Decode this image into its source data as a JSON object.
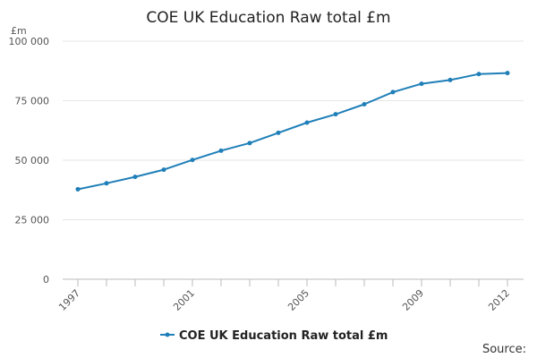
{
  "chart_data": {
    "type": "line",
    "title": "COE UK Education Raw total £m",
    "unit_label": "£m",
    "xlabel": "",
    "ylabel": "",
    "ylim": [
      0,
      100000
    ],
    "yticks": [
      0,
      25000,
      50000,
      75000,
      100000
    ],
    "ytick_labels": [
      "0",
      "25 000",
      "50 000",
      "75 000",
      "100 000"
    ],
    "xlim": [
      1997,
      2012
    ],
    "xticks": [
      1997,
      2001,
      2005,
      2009,
      2012
    ],
    "xtick_labels": [
      "1997",
      "2001",
      "2005",
      "2009",
      "2012"
    ],
    "x": [
      1997,
      1998,
      1999,
      2000,
      2001,
      2002,
      2003,
      2004,
      2005,
      2006,
      2007,
      2008,
      2009,
      2010,
      2011,
      2012
    ],
    "series": [
      {
        "name": "COE UK Education Raw total £m",
        "color": "#1f7fb8",
        "values": [
          37800,
          40300,
          43000,
          46000,
          50100,
          54000,
          57200,
          61500,
          65800,
          69300,
          73500,
          78600,
          82100,
          83700,
          86200,
          86600
        ]
      }
    ],
    "grid": "horizontal",
    "legend_position": "bottom"
  },
  "footer": {
    "source_label": "Source:"
  }
}
